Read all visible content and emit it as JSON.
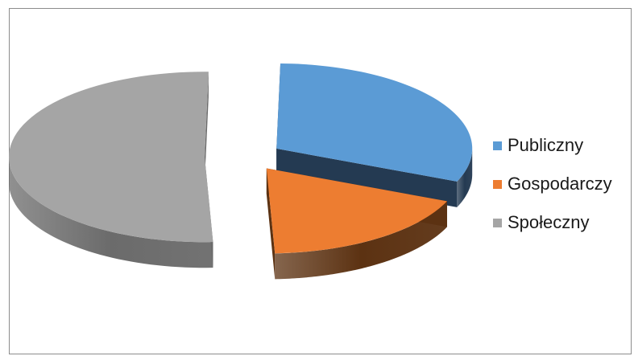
{
  "chart_data": {
    "type": "pie",
    "variant": "3d-exploded",
    "title": "",
    "categories": [
      "Publiczny",
      "Gospodarczy",
      "Społeczny"
    ],
    "values": [
      31,
      18,
      51
    ],
    "colors": [
      "#5b9bd5",
      "#ed7d31",
      "#a5a5a5"
    ],
    "side_colors": [
      "#243a52",
      "#5c3212",
      "#6b6b6b"
    ],
    "legend_position": "right"
  }
}
